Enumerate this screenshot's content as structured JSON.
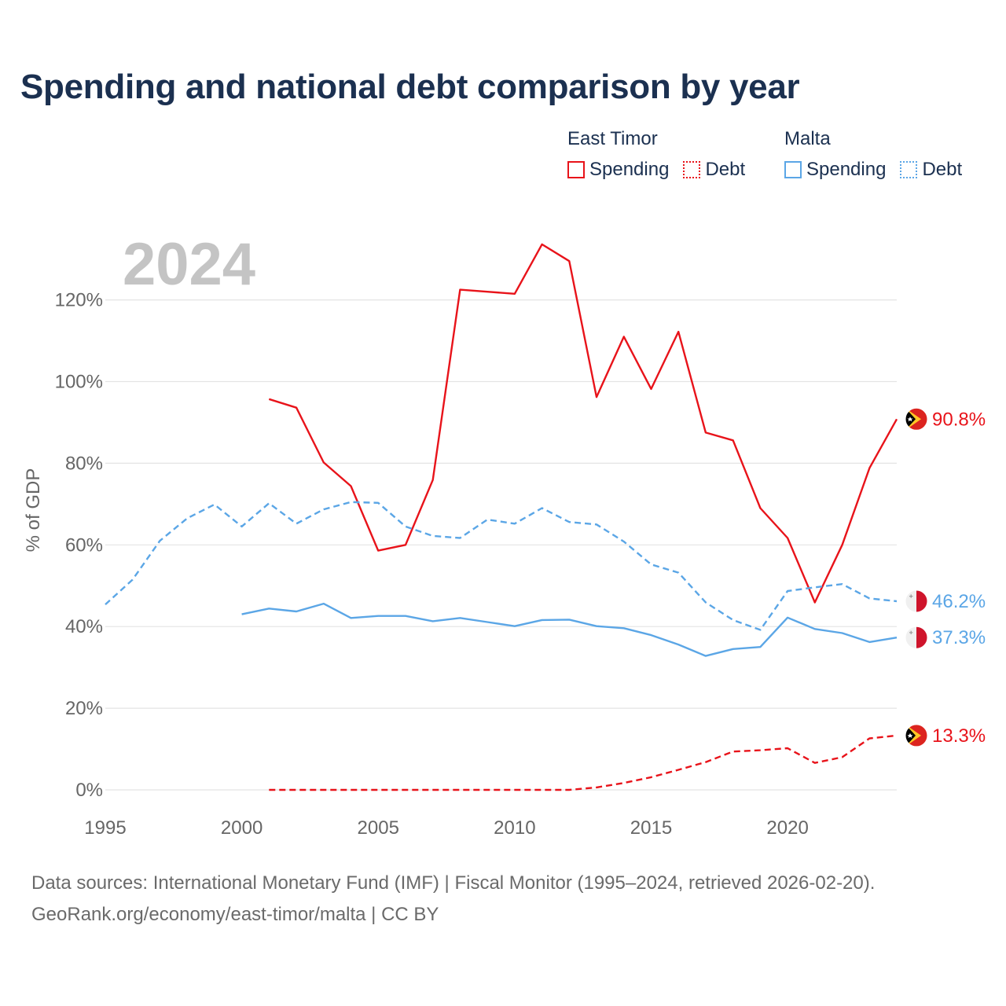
{
  "chart_data": {
    "type": "line",
    "title": "Spending and national debt comparison by year",
    "year_label": "2024",
    "ylabel": "% of GDP",
    "xlabel": "",
    "xlim": [
      1995,
      2024
    ],
    "ylim": [
      0,
      130
    ],
    "x_ticks": [
      1995,
      2000,
      2005,
      2010,
      2015,
      2020
    ],
    "x_tick_labels": [
      "1995",
      "2000",
      "2005",
      "2010",
      "2015",
      "2020"
    ],
    "y_ticks": [
      0,
      20,
      40,
      60,
      80,
      100,
      120
    ],
    "y_tick_labels": [
      "0%",
      "20%",
      "40%",
      "60%",
      "80%",
      "100%",
      "120%"
    ],
    "legend": {
      "groups": [
        {
          "name": "East Timor",
          "items": [
            {
              "label": "Spending",
              "style": "solid",
              "color": "#e8131a"
            },
            {
              "label": "Debt",
              "style": "dotted",
              "color": "#e8131a"
            }
          ]
        },
        {
          "name": "Malta",
          "items": [
            {
              "label": "Spending",
              "style": "solid",
              "color": "#5ba6e6"
            },
            {
              "label": "Debt",
              "style": "dotted",
              "color": "#5ba6e6"
            }
          ]
        }
      ]
    },
    "series": [
      {
        "name": "East Timor Spending",
        "country": "East Timor",
        "color": "#e8131a",
        "dash": false,
        "end_label": "90.8%",
        "x": [
          2001,
          2002,
          2003,
          2004,
          2005,
          2006,
          2007,
          2008,
          2009,
          2010,
          2011,
          2012,
          2013,
          2014,
          2015,
          2016,
          2017,
          2018,
          2019,
          2020,
          2021,
          2022,
          2023,
          2024
        ],
        "values": [
          95.7,
          93.6,
          80.2,
          74.4,
          58.6,
          60.0,
          75.9,
          122.5,
          122.0,
          121.5,
          133.6,
          129.5,
          96.2,
          111.0,
          98.2,
          112.2,
          87.5,
          85.6,
          69.0,
          61.7,
          45.9,
          60.0,
          78.8,
          90.8
        ]
      },
      {
        "name": "East Timor Debt",
        "country": "East Timor",
        "color": "#e8131a",
        "dash": true,
        "end_label": "13.3%",
        "x": [
          2001,
          2002,
          2003,
          2004,
          2005,
          2006,
          2007,
          2008,
          2009,
          2010,
          2011,
          2012,
          2013,
          2014,
          2015,
          2016,
          2017,
          2018,
          2019,
          2020,
          2021,
          2022,
          2023,
          2024
        ],
        "values": [
          0,
          0,
          0,
          0,
          0,
          0,
          0,
          0,
          0,
          0,
          0,
          0,
          0.6,
          1.7,
          3.1,
          4.9,
          6.8,
          9.4,
          9.7,
          10.2,
          6.6,
          8.0,
          12.6,
          13.3
        ]
      },
      {
        "name": "Malta Spending",
        "country": "Malta",
        "color": "#5ba6e6",
        "dash": false,
        "end_label": "37.3%",
        "x": [
          2000,
          2001,
          2002,
          2003,
          2004,
          2005,
          2006,
          2007,
          2008,
          2009,
          2010,
          2011,
          2012,
          2013,
          2014,
          2015,
          2016,
          2017,
          2018,
          2019,
          2020,
          2021,
          2022,
          2023,
          2024
        ],
        "values": [
          43.0,
          44.4,
          43.7,
          45.6,
          42.1,
          42.6,
          42.6,
          41.3,
          42.1,
          41.1,
          40.1,
          41.6,
          41.7,
          40.1,
          39.6,
          37.9,
          35.6,
          32.8,
          34.5,
          35.0,
          42.2,
          39.4,
          38.4,
          36.2,
          37.3
        ]
      },
      {
        "name": "Malta Debt",
        "country": "Malta",
        "color": "#5ba6e6",
        "dash": true,
        "end_label": "46.2%",
        "x": [
          1995,
          1996,
          1997,
          1998,
          1999,
          2000,
          2001,
          2002,
          2003,
          2004,
          2005,
          2006,
          2007,
          2008,
          2009,
          2010,
          2011,
          2012,
          2013,
          2014,
          2015,
          2016,
          2017,
          2018,
          2019,
          2020,
          2021,
          2022,
          2023,
          2024
        ],
        "values": [
          45.4,
          51.5,
          61.0,
          66.5,
          69.9,
          64.5,
          70.2,
          65.2,
          68.7,
          70.5,
          70.3,
          64.5,
          62.2,
          61.7,
          66.2,
          65.2,
          69.0,
          65.6,
          65.0,
          60.8,
          55.2,
          53.2,
          45.9,
          41.6,
          39.2,
          48.7,
          49.6,
          50.4,
          46.9,
          46.2
        ]
      }
    ]
  },
  "footer": {
    "line1": "Data sources: International Monetary Fund (IMF) | Fiscal Monitor (1995–2024, retrieved 2026-02-20).",
    "line2": "GeoRank.org/economy/east-timor/malta | CC BY"
  },
  "icons": {
    "east_timor_flag": "east-timor-flag-icon",
    "malta_flag": "malta-flag-icon"
  }
}
